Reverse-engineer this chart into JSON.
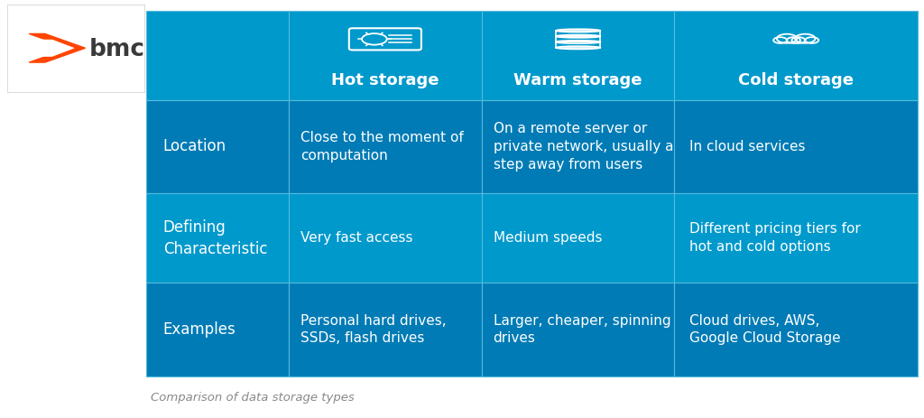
{
  "subtitle": "Comparison of data storage types",
  "bg_color": "#ffffff",
  "header_bg": "#0099cc",
  "row_bg_dark": "#007bb5",
  "row_bg_light": "#0099cc",
  "logo_box_bg": "#ffffff",
  "header_labels": [
    "Hot storage",
    "Warm storage",
    "Cold storage"
  ],
  "row_labels": [
    "Location",
    "Defining\nCharacteristic",
    "Examples"
  ],
  "cells": [
    [
      "Close to the moment of\ncomputation",
      "On a remote server or\nprivate network, usually a\nstep away from users",
      "In cloud services"
    ],
    [
      "Very fast access",
      "Medium speeds",
      "Different pricing tiers for\nhot and cold options"
    ],
    [
      "Personal hard drives,\nSSDs, flash drives",
      "Larger, cheaper, spinning\ndrives",
      "Cloud drives, AWS,\nGoogle Cloud Storage"
    ]
  ],
  "border_color": "#55bbdd",
  "header_text_size": 13,
  "cell_text_size": 11,
  "row_label_size": 12,
  "subtitle_color": "#888888"
}
